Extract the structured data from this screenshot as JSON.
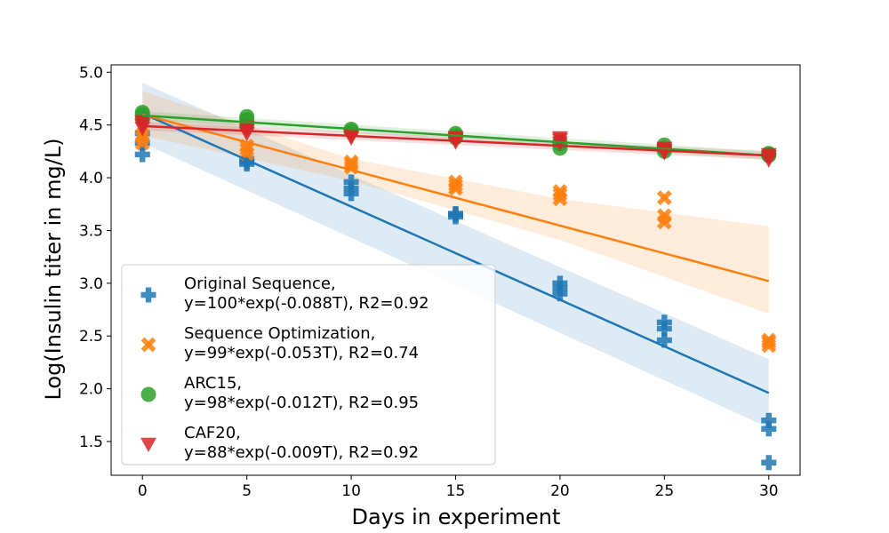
{
  "chart_data": {
    "type": "scatter",
    "title": "",
    "xlabel": "Days in experiment",
    "ylabel": "Log(Insulin titer in mg/L)",
    "xlim": [
      -1.5,
      31.5
    ],
    "ylim": [
      1.18,
      5.07
    ],
    "xticks": [
      0,
      5,
      10,
      15,
      20,
      25,
      30
    ],
    "yticks": [
      1.5,
      2.0,
      2.5,
      3.0,
      3.5,
      4.0,
      4.5,
      5.0
    ],
    "legend_position": "lower-left",
    "grid": false,
    "series": [
      {
        "name": "Original Sequence,",
        "fit_label": "y=100*exp(-0.088T), R2=0.92",
        "color": "#1f77b4",
        "marker": "plus",
        "points": [
          [
            0,
            4.22
          ],
          [
            0,
            4.33
          ],
          [
            0,
            4.42
          ],
          [
            5,
            4.13
          ],
          [
            5,
            4.15
          ],
          [
            5,
            4.18
          ],
          [
            10,
            3.85
          ],
          [
            10,
            3.9
          ],
          [
            10,
            3.96
          ],
          [
            15,
            3.63
          ],
          [
            15,
            3.65
          ],
          [
            15,
            3.66
          ],
          [
            20,
            2.9
          ],
          [
            20,
            2.95
          ],
          [
            20,
            3.0
          ],
          [
            25,
            2.46
          ],
          [
            25,
            2.57
          ],
          [
            25,
            2.63
          ],
          [
            30,
            1.3
          ],
          [
            30,
            1.62
          ],
          [
            30,
            1.7
          ]
        ],
        "fit": [
          [
            0,
            4.61
          ],
          [
            30,
            1.96
          ]
        ],
        "ci_band": [
          [
            0,
            4.33,
            4.9
          ],
          [
            30,
            1.63,
            2.28
          ]
        ]
      },
      {
        "name": "Sequence Optimization,",
        "fit_label": "y=99*exp(-0.053T), R2=0.74",
        "color": "#ff7f0e",
        "marker": "x",
        "points": [
          [
            0,
            4.33
          ],
          [
            0,
            4.38
          ],
          [
            0,
            4.41
          ],
          [
            5,
            4.23
          ],
          [
            5,
            4.27
          ],
          [
            5,
            4.3
          ],
          [
            10,
            4.1
          ],
          [
            10,
            4.13
          ],
          [
            10,
            4.15
          ],
          [
            15,
            3.9
          ],
          [
            15,
            3.93
          ],
          [
            15,
            3.96
          ],
          [
            20,
            3.8
          ],
          [
            20,
            3.84
          ],
          [
            20,
            3.87
          ],
          [
            25,
            3.58
          ],
          [
            25,
            3.64
          ],
          [
            25,
            3.81
          ],
          [
            30,
            2.41
          ],
          [
            30,
            2.44
          ],
          [
            30,
            2.46
          ]
        ],
        "fit": [
          [
            0,
            4.6
          ],
          [
            30,
            3.02
          ]
        ],
        "ci_band": [
          [
            0,
            4.4,
            4.82
          ],
          [
            10,
            3.97,
            4.18
          ],
          [
            20,
            3.41,
            3.8
          ],
          [
            30,
            2.71,
            3.54
          ]
        ]
      },
      {
        "name": "ARC15,",
        "fit_label": "y=98*exp(-0.012T), R2=0.95",
        "color": "#2ca02c",
        "marker": "circle",
        "points": [
          [
            0,
            4.56
          ],
          [
            0,
            4.6
          ],
          [
            0,
            4.62
          ],
          [
            5,
            4.49
          ],
          [
            5,
            4.55
          ],
          [
            5,
            4.58
          ],
          [
            10,
            4.44
          ],
          [
            10,
            4.46
          ],
          [
            15,
            4.38
          ],
          [
            15,
            4.4
          ],
          [
            15,
            4.42
          ],
          [
            20,
            4.28
          ],
          [
            20,
            4.32
          ],
          [
            20,
            4.34
          ],
          [
            25,
            4.25
          ],
          [
            25,
            4.28
          ],
          [
            25,
            4.31
          ],
          [
            30,
            4.21
          ],
          [
            30,
            4.22
          ],
          [
            30,
            4.23
          ]
        ],
        "fit": [
          [
            0,
            4.59
          ],
          [
            30,
            4.21
          ]
        ],
        "ci_band": [
          [
            0,
            4.55,
            4.63
          ],
          [
            30,
            4.17,
            4.25
          ]
        ]
      },
      {
        "name": "CAF20,",
        "fit_label": "y=88*exp(-0.009T), R2=0.92",
        "color": "#d62728",
        "marker": "triangle-down",
        "points": [
          [
            0,
            4.47
          ],
          [
            0,
            4.5
          ],
          [
            0,
            4.53
          ],
          [
            5,
            4.42
          ],
          [
            5,
            4.45
          ],
          [
            5,
            4.48
          ],
          [
            10,
            4.38
          ],
          [
            10,
            4.4
          ],
          [
            15,
            4.34
          ],
          [
            15,
            4.36
          ],
          [
            15,
            4.38
          ],
          [
            20,
            4.33
          ],
          [
            20,
            4.36
          ],
          [
            20,
            4.38
          ],
          [
            25,
            4.24
          ],
          [
            25,
            4.26
          ],
          [
            25,
            4.28
          ],
          [
            30,
            4.17
          ],
          [
            30,
            4.2
          ],
          [
            30,
            4.22
          ]
        ],
        "fit": [
          [
            0,
            4.49
          ],
          [
            30,
            4.21
          ]
        ],
        "ci_band": [
          [
            0,
            4.45,
            4.53
          ],
          [
            30,
            4.17,
            4.25
          ]
        ]
      }
    ]
  }
}
